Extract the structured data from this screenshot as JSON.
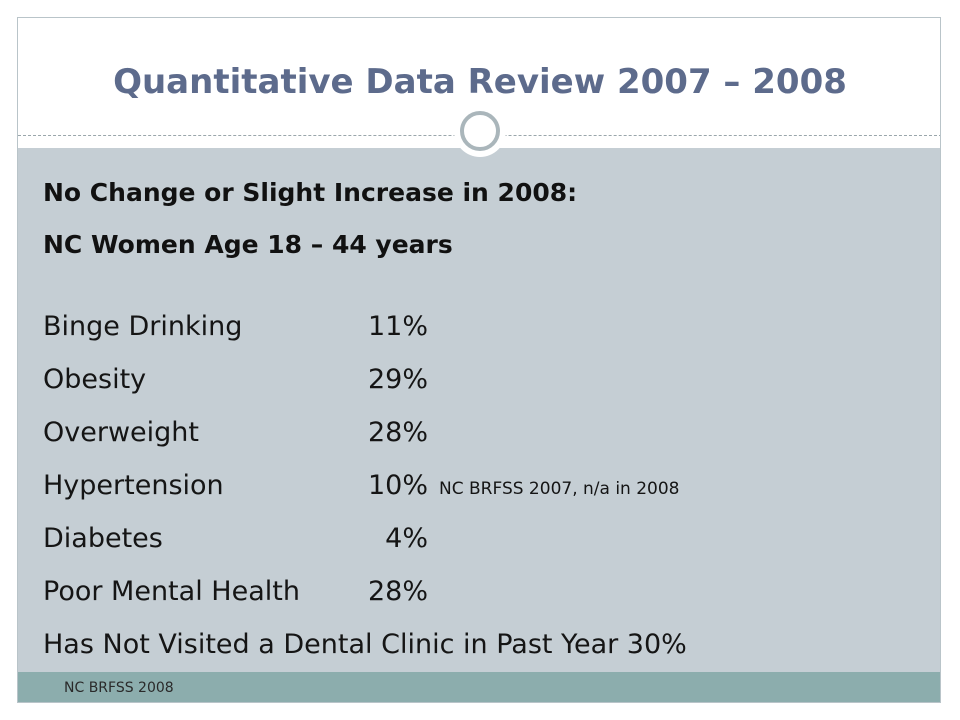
{
  "slide": {
    "title": "Quantitative Data Review 2007 – 2008",
    "heading_1": "No Change or Slight Increase in 2008:",
    "heading_2": "NC Women Age 18 – 44 years",
    "measures": [
      {
        "label": "Binge Drinking",
        "value": "11%",
        "note": ""
      },
      {
        "label": "Obesity",
        "value": "29%",
        "note": ""
      },
      {
        "label": "Overweight",
        "value": "28%",
        "note": ""
      },
      {
        "label": "Hypertension",
        "value": "10%",
        "note": "NC BRFSS 2007, n/a in 2008"
      },
      {
        "label": "Diabetes",
        "value": "4%",
        "note": ""
      },
      {
        "label": "Poor Mental Health",
        "value": "28%",
        "note": ""
      }
    ],
    "dental_line": "Has Not Visited a Dental Clinic in Past Year 30%",
    "footer_source": "NC BRFSS 2008"
  },
  "colors": {
    "title": "#5d6b8c",
    "content_background": "#c5ced4",
    "footer_band": "#8cadad"
  }
}
